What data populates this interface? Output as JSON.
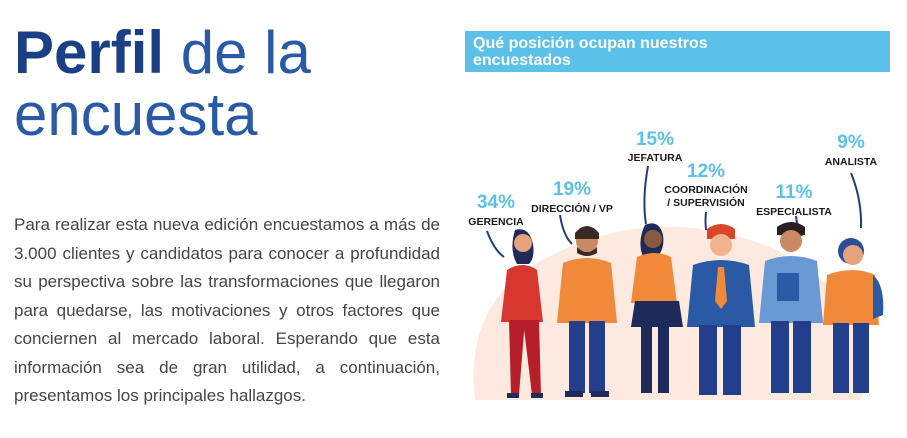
{
  "title": {
    "bold": "Perfil",
    "light_line1": " de la",
    "light_line2": "encuesta"
  },
  "body_text": "Para realizar esta nueva edición encuestamos a más de 3.000 clientes y candidatos para conocer a profundidad su perspectiva sobre las transformaciones que llegaron para quedarse, las motivaciones y otros factores que conciernen al mercado laboral. Esperando que esta información sea de gran utilidad, a continuación, presentamos los principales hallazgos.",
  "banner": {
    "line1": "Qué posición ocupan nuestros",
    "line2": "encuestados"
  },
  "positions": [
    {
      "percent": "34%",
      "label": "GERENCIA"
    },
    {
      "percent": "19%",
      "label": "DIRECCIÓN / VP"
    },
    {
      "percent": "15%",
      "label": "JEFATURA"
    },
    {
      "percent": "12%",
      "label_line1": "COORDINACIÓN",
      "label_line2": "/ SUPERVISIÓN"
    },
    {
      "percent": "11%",
      "label": "ESPECIALISTA"
    },
    {
      "percent": "9%",
      "label": "ANALISTA"
    }
  ],
  "colors": {
    "title_blue": "#1a3f86",
    "accent_cyan": "#5bc1e9",
    "body_gray": "#454545"
  }
}
